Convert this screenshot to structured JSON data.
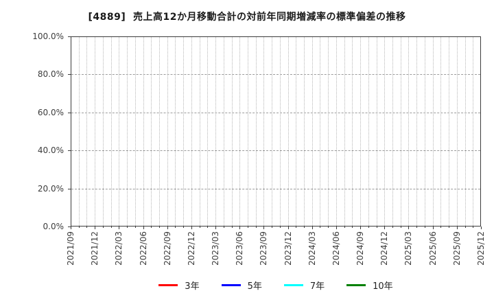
{
  "title": "[4889]  売上高12か月移動合計の対前年同期増減率の標準偏差の推移",
  "chart_data": {
    "type": "line",
    "title": "[4889]  売上高12か月移動合計の対前年同期増減率の標準偏差の推移",
    "x_labels": [
      "2021/09",
      "2021/12",
      "2022/03",
      "2022/06",
      "2022/09",
      "2022/12",
      "2023/03",
      "2023/06",
      "2023/09",
      "2023/12",
      "2024/03",
      "2024/06",
      "2024/09",
      "2024/12",
      "2025/03",
      "2025/06",
      "2025/09",
      "2025/12"
    ],
    "y_tick_labels": [
      "100.0%",
      "80.0%",
      "60.0%",
      "40.0%",
      "20.0%",
      "0.0%"
    ],
    "ylim": [
      0,
      100
    ],
    "grid": "on",
    "minor_vgrid": "monthly",
    "legend_position": "bottom",
    "series": [
      {
        "name": "3年",
        "color": "#ff0000",
        "values": []
      },
      {
        "name": "5年",
        "color": "#0000ff",
        "values": []
      },
      {
        "name": "7年",
        "color": "#00ffff",
        "values": []
      },
      {
        "name": "10年",
        "color": "#008000",
        "values": []
      }
    ]
  }
}
